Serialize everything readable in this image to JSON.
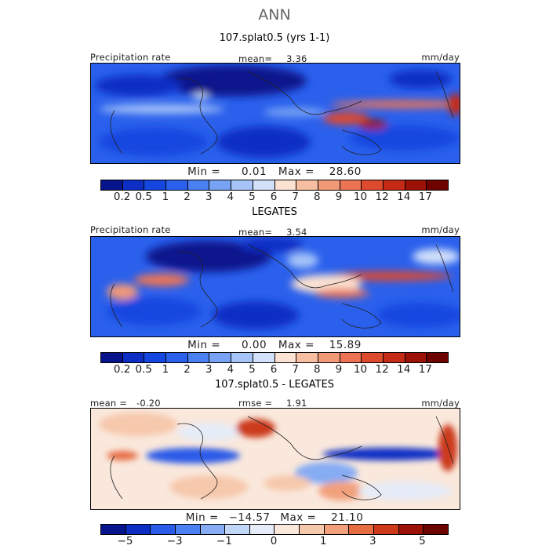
{
  "title": "ANN",
  "colors": {
    "precip_levels": [
      "#08148c",
      "#0c2ec4",
      "#1546e0",
      "#2a60ec",
      "#4a80f2",
      "#78a2f4",
      "#a6c4f8",
      "#d2e0fa",
      "#fbe2d2",
      "#f7bea2",
      "#f29a78",
      "#ec7454",
      "#de4a2e",
      "#c42a16",
      "#9c1206",
      "#6e0400"
    ],
    "diff_levels": [
      "#08148c",
      "#0c2ec4",
      "#2a5ae8",
      "#4a80f2",
      "#86acf4",
      "#c2d6f8",
      "#e6ecf8",
      "#fae8dc",
      "#f6c8ac",
      "#f2a07c",
      "#e66c42",
      "#cc3a1a",
      "#9c1206",
      "#6e0400"
    ]
  },
  "chart_data": [
    {
      "type": "heatmap",
      "panel_title": "107.splat0.5 (yrs 1-1)",
      "variable": "Precipitation rate",
      "units": "mm/day",
      "mean_label": "mean=",
      "mean": "3.36",
      "min_label": "Min =",
      "min": "0.01",
      "max_label": "Max =",
      "max": "28.60",
      "colorbar_ticks": [
        "0.2",
        "0.5",
        "1",
        "2",
        "3",
        "4",
        "5",
        "6",
        "7",
        "8",
        "9",
        "10",
        "12",
        "14",
        "17"
      ]
    },
    {
      "type": "heatmap",
      "panel_title": "LEGATES",
      "variable": "Precipitation rate",
      "units": "mm/day",
      "mean_label": "mean=",
      "mean": "3.54",
      "min_label": "Min =",
      "min": "0.00",
      "max_label": "Max =",
      "max": "15.89",
      "colorbar_ticks": [
        "0.2",
        "0.5",
        "1",
        "2",
        "3",
        "4",
        "5",
        "6",
        "7",
        "8",
        "9",
        "10",
        "12",
        "14",
        "17"
      ]
    },
    {
      "type": "heatmap",
      "panel_title": "107.splat0.5 - LEGATES",
      "units": "mm/day",
      "mean_label": "mean =",
      "mean": "-0.20",
      "rmse_label": "rmse =",
      "rmse": "1.91",
      "min_label": "Min =",
      "min": "−14.57",
      "max_label": "Max =",
      "max": "21.10",
      "colorbar_ticks": [
        "−5",
        "−3",
        "−1",
        "0",
        "1",
        "3",
        "5"
      ]
    }
  ]
}
